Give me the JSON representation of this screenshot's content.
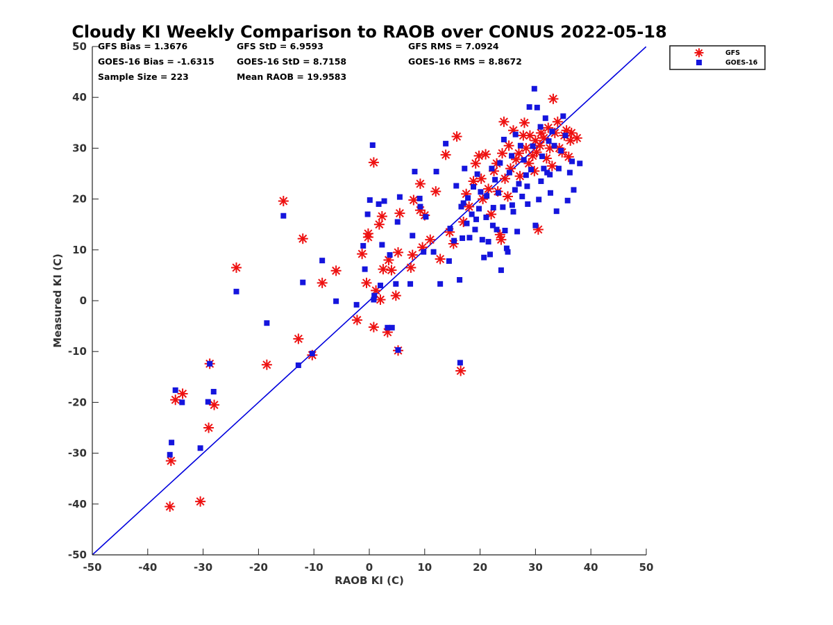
{
  "chart_data": {
    "type": "scatter",
    "title": "Cloudy KI Weekly Comparison to RAOB over CONUS 2022-05-18",
    "xlabel": "RAOB KI (C)",
    "ylabel": "Measured KI (C)",
    "xlim": [
      -50,
      50
    ],
    "ylim": [
      -50,
      50
    ],
    "xticks": [
      "-50",
      "-40",
      "-30",
      "-20",
      "-10",
      "0",
      "10",
      "20",
      "30",
      "40",
      "50"
    ],
    "yticks": [
      "50",
      "40",
      "30",
      "20",
      "10",
      "0",
      "-10",
      "-20",
      "-30",
      "-40",
      "-50"
    ],
    "grid": false,
    "legend_position": "top-right outside",
    "stats": [
      [
        "GFS Bias = 1.3676",
        "GFS StD = 6.9593",
        "GFS RMS = 7.0924"
      ],
      [
        "GOES-16 Bias = -1.6315",
        "GOES-16 StD = 8.7158",
        "GOES-16 RMS = 8.8672"
      ],
      [
        "Sample Size = 223",
        "Mean RAOB = 19.9583",
        ""
      ]
    ],
    "reference_line": {
      "x": [
        -50,
        50
      ],
      "y": [
        -50,
        50
      ],
      "color": "#0000dd"
    },
    "series": [
      {
        "name": "GFS",
        "marker": "asterisk",
        "color": "#ee1111",
        "points": [
          [
            -36,
            -40.5
          ],
          [
            -35.8,
            -31.5
          ],
          [
            -35,
            -19.5
          ],
          [
            -33.7,
            -18.3
          ],
          [
            -30.5,
            -39.5
          ],
          [
            -29,
            -25
          ],
          [
            -28.8,
            -12.4
          ],
          [
            -28,
            -20.5
          ],
          [
            -24,
            6.5
          ],
          [
            -18.5,
            -12.6
          ],
          [
            -15.5,
            19.6
          ],
          [
            -12.8,
            -7.5
          ],
          [
            -12,
            12.2
          ],
          [
            -10.3,
            -10.7
          ],
          [
            -8.5,
            3.5
          ],
          [
            -6,
            5.9
          ],
          [
            -2.2,
            -3.8
          ],
          [
            -1.3,
            9.2
          ],
          [
            -0.5,
            3.5
          ],
          [
            -0.2,
            12.5
          ],
          [
            -0.2,
            13.2
          ],
          [
            0.8,
            27.2
          ],
          [
            0.8,
            -5.2
          ],
          [
            1.2,
            2
          ],
          [
            1.8,
            15
          ],
          [
            2,
            0.2
          ],
          [
            2.3,
            16.6
          ],
          [
            2.5,
            6.2
          ],
          [
            3.3,
            -6.2
          ],
          [
            3.5,
            8
          ],
          [
            4,
            6
          ],
          [
            4.8,
            1
          ],
          [
            5.2,
            -9.8
          ],
          [
            5.2,
            9.5
          ],
          [
            5.5,
            17.2
          ],
          [
            7.5,
            6.5
          ],
          [
            7.8,
            9
          ],
          [
            8,
            19.8
          ],
          [
            9.2,
            23
          ],
          [
            9.2,
            17.8
          ],
          [
            9.6,
            10.5
          ],
          [
            10,
            16.8
          ],
          [
            11,
            12
          ],
          [
            12,
            21.5
          ],
          [
            12.8,
            8.2
          ],
          [
            13.8,
            28.7
          ],
          [
            14.5,
            13.5
          ],
          [
            15.2,
            11.2
          ],
          [
            15.8,
            32.3
          ],
          [
            16.5,
            -13.8
          ],
          [
            17,
            15.5
          ],
          [
            17.5,
            21
          ],
          [
            18,
            18.5
          ],
          [
            18.8,
            23.5
          ],
          [
            19.2,
            27
          ],
          [
            19.8,
            28.5
          ],
          [
            20.2,
            24
          ],
          [
            20.5,
            20
          ],
          [
            21,
            28.8
          ],
          [
            21.5,
            22
          ],
          [
            22,
            17
          ],
          [
            22.5,
            25.5
          ],
          [
            23,
            27
          ],
          [
            23.2,
            21.5
          ],
          [
            23.6,
            13
          ],
          [
            23.8,
            12
          ],
          [
            24,
            29
          ],
          [
            24.3,
            35.2
          ],
          [
            24.5,
            24
          ],
          [
            25,
            20.5
          ],
          [
            25.2,
            30.5
          ],
          [
            25.5,
            26
          ],
          [
            26,
            33.5
          ],
          [
            26.5,
            27.8
          ],
          [
            27,
            29
          ],
          [
            27.2,
            24.5
          ],
          [
            27.8,
            32.5
          ],
          [
            28,
            35
          ],
          [
            28.3,
            30
          ],
          [
            28.8,
            27
          ],
          [
            29,
            32.5
          ],
          [
            29.5,
            28.5
          ],
          [
            29.8,
            25.5
          ],
          [
            30,
            31.5
          ],
          [
            30.2,
            29.2
          ],
          [
            30.5,
            14
          ],
          [
            30.8,
            30.5
          ],
          [
            31,
            33
          ],
          [
            31.5,
            32
          ],
          [
            32,
            28
          ],
          [
            32.3,
            34
          ],
          [
            32.6,
            30
          ],
          [
            33,
            26.5
          ],
          [
            33.2,
            39.7
          ],
          [
            33.5,
            33
          ],
          [
            34,
            35.2
          ],
          [
            34.3,
            30
          ],
          [
            34.8,
            29.2
          ],
          [
            35.2,
            32.5
          ],
          [
            35.6,
            33.5
          ],
          [
            36,
            28.3
          ],
          [
            36.3,
            31.5
          ],
          [
            36.5,
            33
          ],
          [
            37.5,
            32
          ]
        ]
      },
      {
        "name": "GOES-16",
        "marker": "square",
        "color": "#1515dd",
        "points": [
          [
            -36,
            -30.3
          ],
          [
            -35.7,
            -27.9
          ],
          [
            -35,
            -17.6
          ],
          [
            -33.8,
            -20
          ],
          [
            -30.5,
            -29
          ],
          [
            -29.1,
            -19.9
          ],
          [
            -28.8,
            -12.4
          ],
          [
            -28.1,
            -17.9
          ],
          [
            -24,
            1.8
          ],
          [
            -18.5,
            -4.4
          ],
          [
            -15.5,
            16.7
          ],
          [
            -12.8,
            -12.7
          ],
          [
            -12,
            3.6
          ],
          [
            -10.3,
            -10.4
          ],
          [
            -8.5,
            7.9
          ],
          [
            -6,
            -0.1
          ],
          [
            -2.3,
            -0.8
          ],
          [
            -1.1,
            10.8
          ],
          [
            -0.8,
            6.2
          ],
          [
            -0.3,
            17
          ],
          [
            0.1,
            19.8
          ],
          [
            0.6,
            30.6
          ],
          [
            0.8,
            0.2
          ],
          [
            0.9,
            1
          ],
          [
            1.7,
            19
          ],
          [
            2,
            3
          ],
          [
            2.3,
            11
          ],
          [
            2.7,
            19.6
          ],
          [
            3.3,
            -5.3
          ],
          [
            3.7,
            9
          ],
          [
            4.1,
            -5.3
          ],
          [
            4.8,
            3.3
          ],
          [
            5.1,
            15.5
          ],
          [
            5.2,
            -9.7
          ],
          [
            5.5,
            20.4
          ],
          [
            7.4,
            3.3
          ],
          [
            7.8,
            12.8
          ],
          [
            8.2,
            25.4
          ],
          [
            9.1,
            20.1
          ],
          [
            9.2,
            18.5
          ],
          [
            9.8,
            9.6
          ],
          [
            10.2,
            16.5
          ],
          [
            11.6,
            9.6
          ],
          [
            12.1,
            25.4
          ],
          [
            12.8,
            3.3
          ],
          [
            13.8,
            30.9
          ],
          [
            14.4,
            7.8
          ],
          [
            14.6,
            14.2
          ],
          [
            15.3,
            11.8
          ],
          [
            15.7,
            22.6
          ],
          [
            16.3,
            4.1
          ],
          [
            16.4,
            -12.2
          ],
          [
            16.6,
            18.5
          ],
          [
            16.8,
            12.3
          ],
          [
            17.2,
            26
          ],
          [
            17.6,
            15.2
          ],
          [
            17.8,
            20.2
          ],
          [
            18.1,
            12.4
          ],
          [
            18.5,
            17
          ],
          [
            18.8,
            22.4
          ],
          [
            19.1,
            14
          ],
          [
            19.5,
            24.9
          ],
          [
            19.8,
            18.1
          ],
          [
            20.1,
            21.4
          ],
          [
            20.4,
            12
          ],
          [
            20.7,
            8.5
          ],
          [
            21.1,
            16.4
          ],
          [
            21.5,
            11.6
          ],
          [
            21.8,
            9.1
          ],
          [
            22.1,
            26
          ],
          [
            22.4,
            18.3
          ],
          [
            22.7,
            23.8
          ],
          [
            23,
            14
          ],
          [
            23.3,
            21.2
          ],
          [
            23.6,
            27.1
          ],
          [
            23.8,
            6
          ],
          [
            24.1,
            18.4
          ],
          [
            24.3,
            31.7
          ],
          [
            24.5,
            13.8
          ],
          [
            24.8,
            10.3
          ],
          [
            25,
            9.6
          ],
          [
            25.3,
            25.2
          ],
          [
            25.7,
            28.5
          ],
          [
            26,
            17.5
          ],
          [
            26.4,
            32.7
          ],
          [
            26.7,
            13.6
          ],
          [
            27,
            23
          ],
          [
            27.3,
            30.5
          ],
          [
            27.6,
            20.5
          ],
          [
            27.9,
            27.7
          ],
          [
            28.3,
            24.7
          ],
          [
            28.6,
            19
          ],
          [
            28.9,
            38.1
          ],
          [
            29.2,
            25.8
          ],
          [
            29.5,
            30.4
          ],
          [
            29.8,
            41.7
          ],
          [
            30,
            14.8
          ],
          [
            30.3,
            38
          ],
          [
            30.6,
            19.9
          ],
          [
            30.9,
            34.2
          ],
          [
            31.2,
            28.4
          ],
          [
            31.5,
            26
          ],
          [
            31.8,
            35.9
          ],
          [
            32.1,
            25.2
          ],
          [
            32.4,
            31.4
          ],
          [
            32.7,
            21.2
          ],
          [
            33,
            33.3
          ],
          [
            33.4,
            30.5
          ],
          [
            33.8,
            17.6
          ],
          [
            34.2,
            26
          ],
          [
            34.6,
            29.5
          ],
          [
            35,
            36.3
          ],
          [
            35.4,
            32.5
          ],
          [
            35.8,
            19.7
          ],
          [
            36.2,
            25.2
          ],
          [
            36.6,
            27.4
          ],
          [
            36.9,
            21.8
          ],
          [
            38,
            27
          ],
          [
            22.3,
            14.8
          ],
          [
            19.3,
            16
          ],
          [
            26.3,
            21.8
          ],
          [
            28.5,
            22.5
          ],
          [
            31,
            23.5
          ],
          [
            32.6,
            24.8
          ],
          [
            17,
            19.2
          ],
          [
            21.2,
            20.6
          ],
          [
            25.8,
            18.8
          ]
        ]
      }
    ]
  }
}
